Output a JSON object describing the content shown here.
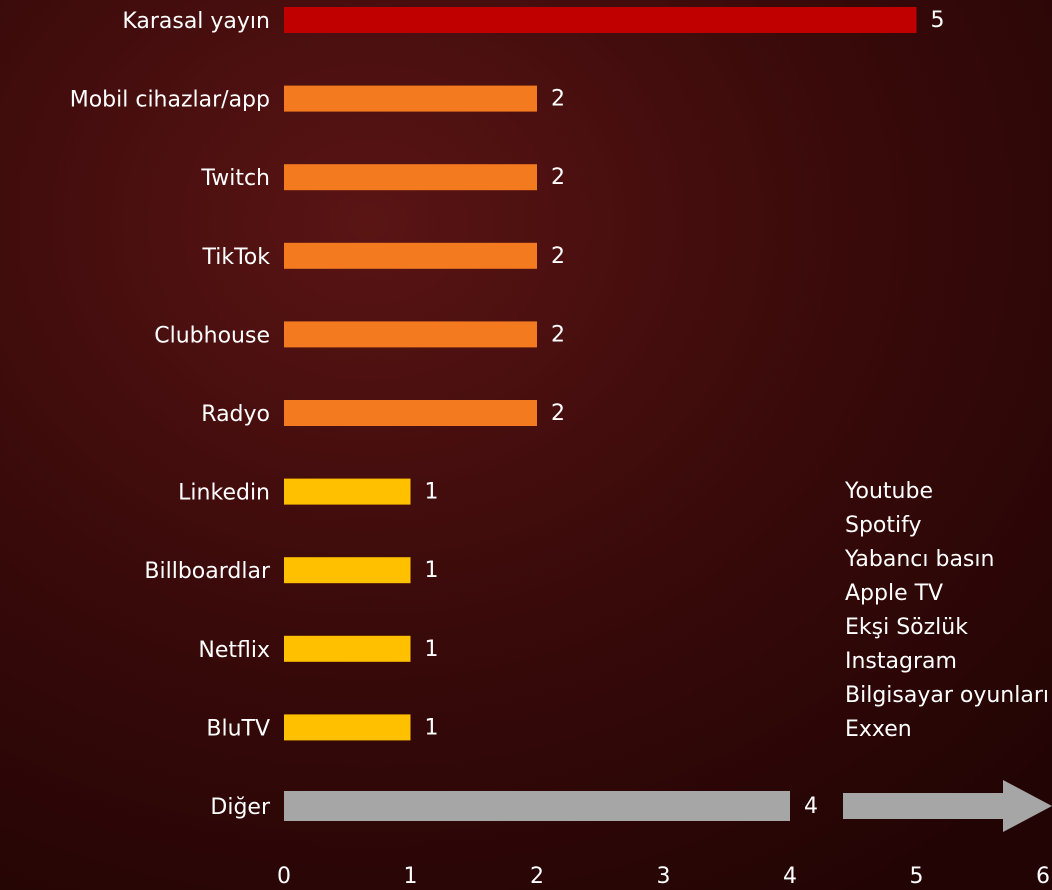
{
  "chart_data": {
    "type": "bar",
    "orientation": "horizontal",
    "categories": [
      "Karasal yayın",
      "Mobil cihazlar/app",
      "Twitch",
      "TikTok",
      "Clubhouse",
      "Radyo",
      "Linkedin",
      "Billboardlar",
      "Netflix",
      "BluTV",
      "Diğer"
    ],
    "values": [
      5,
      2,
      2,
      2,
      2,
      2,
      1,
      1,
      1,
      1,
      4
    ],
    "colors": [
      "#c00000",
      "#f47a20",
      "#f47a20",
      "#f47a20",
      "#f47a20",
      "#f47a20",
      "#ffc000",
      "#ffc000",
      "#ffc000",
      "#ffc000",
      "#a6a6a6"
    ],
    "xlim": [
      0,
      6
    ],
    "xticks": [
      0,
      1,
      2,
      3,
      4,
      5,
      6
    ],
    "grid": false,
    "annotation": [
      "Youtube",
      "Spotify",
      "Yabancı basın",
      "Apple TV",
      "Ekşi Sözlük",
      "Instagram",
      "Bilgisayar oyunları",
      "Exxen"
    ]
  }
}
